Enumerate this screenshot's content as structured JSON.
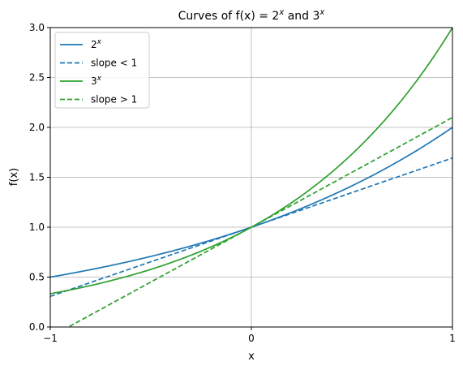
{
  "chart_data": {
    "type": "line",
    "title_main": "Curves of f(x) = 2",
    "title_exp1": "x",
    "title_mid": " and 3",
    "title_exp2": "x",
    "xlabel": "x",
    "ylabel": "f(x)",
    "xlim": [
      -1,
      1
    ],
    "ylim": [
      0,
      3
    ],
    "xticks": [
      -1,
      0,
      1
    ],
    "xtick_labels": [
      "−1",
      "0",
      "1"
    ],
    "yticks": [
      0,
      0.5,
      1,
      1.5,
      2,
      2.5,
      3
    ],
    "ytick_labels": [
      "0.0",
      "0.5",
      "1.0",
      "1.5",
      "2.0",
      "2.5",
      "3.0"
    ],
    "grid": true,
    "legend_position": "top-left",
    "series": [
      {
        "name": "2",
        "name_exp": "x",
        "kind": "exp",
        "base": 2,
        "color": "#1f77b4",
        "dash": "solid"
      },
      {
        "name": "slope < 1",
        "kind": "line",
        "slope": 0.693,
        "intercept": 1,
        "color": "#1f77b4",
        "dash": "dashed"
      },
      {
        "name": "3",
        "name_exp": "x",
        "kind": "exp",
        "base": 3,
        "color": "#2ca02c",
        "dash": "solid"
      },
      {
        "name": "slope > 1",
        "kind": "line",
        "slope": 1.099,
        "intercept": 1,
        "color": "#2ca02c",
        "dash": "dashed"
      }
    ]
  }
}
